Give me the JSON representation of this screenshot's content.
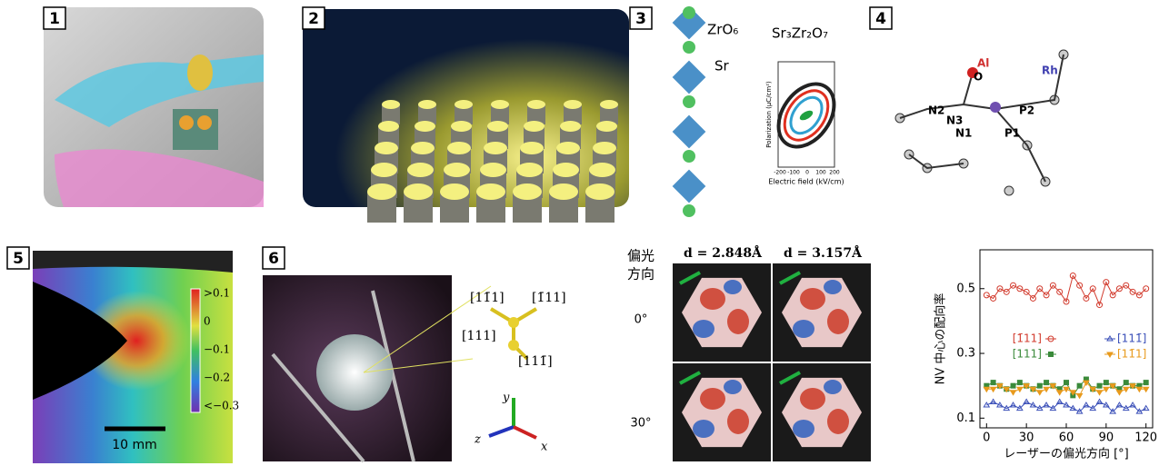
{
  "panel_labels": [
    "1",
    "2",
    "3",
    "4",
    "5",
    "6"
  ],
  "panel3": {
    "octahedron": "ZrO₆",
    "site": "Sr",
    "formula": "Sr₃Zr₂O₇",
    "y_label": "Polarization (μC/cm²)",
    "x_label": "Electric field (kV/cm)",
    "x_ticks": [
      "-200",
      "-100",
      "0",
      "100",
      "200"
    ]
  },
  "panel4": {
    "atoms": [
      "O",
      "Al",
      "Rh",
      "N2",
      "N3",
      "P2",
      "N1",
      "P1"
    ]
  },
  "panel5": {
    "colorbar": [
      ">0.1",
      "0",
      "−0.1",
      "−0.2",
      "<−0.3"
    ],
    "scale_bar": "10 mm"
  },
  "panel6": {
    "directions": [
      "[11̄1]",
      "[1̄11]",
      "[111]",
      "[111̄]"
    ],
    "axes": [
      "y",
      "z",
      "x"
    ]
  },
  "maps": {
    "row_header": [
      "偏光",
      "方向"
    ],
    "columns": [
      "d = 2.848Å",
      "d = 3.157Å"
    ],
    "rows": [
      "0°",
      "30°"
    ]
  },
  "chart_data": {
    "type": "line",
    "x_label": "レーザーの偏光方向 [°]",
    "y_label": "NV 中心の配向率",
    "x": [
      0,
      5,
      10,
      15,
      20,
      25,
      30,
      35,
      40,
      45,
      50,
      55,
      60,
      65,
      70,
      75,
      80,
      85,
      90,
      95,
      100,
      105,
      110,
      115,
      120
    ],
    "xlim": [
      -5,
      125
    ],
    "xticks": [
      0,
      30,
      60,
      90,
      120
    ],
    "ylim": [
      0.07,
      0.62
    ],
    "yticks": [
      0.1,
      0.3,
      0.5
    ],
    "series": [
      {
        "name": "[1̄11]",
        "color": "#d23b2e",
        "marker": "circle",
        "values": [
          0.48,
          0.47,
          0.5,
          0.49,
          0.51,
          0.5,
          0.49,
          0.47,
          0.5,
          0.48,
          0.51,
          0.49,
          0.46,
          0.54,
          0.51,
          0.47,
          0.5,
          0.45,
          0.52,
          0.48,
          0.5,
          0.51,
          0.49,
          0.48,
          0.5
        ]
      },
      {
        "name": "[111̄]",
        "color": "#3a4fb8",
        "marker": "triangle",
        "values": [
          0.14,
          0.15,
          0.14,
          0.13,
          0.14,
          0.13,
          0.15,
          0.14,
          0.13,
          0.14,
          0.13,
          0.15,
          0.14,
          0.13,
          0.12,
          0.14,
          0.13,
          0.15,
          0.14,
          0.12,
          0.14,
          0.13,
          0.14,
          0.12,
          0.13
        ]
      },
      {
        "name": "[111]",
        "color": "#3a8a3a",
        "marker": "square",
        "values": [
          0.2,
          0.21,
          0.2,
          0.19,
          0.2,
          0.21,
          0.2,
          0.19,
          0.2,
          0.21,
          0.2,
          0.19,
          0.21,
          0.17,
          0.2,
          0.22,
          0.19,
          0.2,
          0.21,
          0.2,
          0.19,
          0.21,
          0.2,
          0.2,
          0.21
        ]
      },
      {
        "name": "[11̄1]",
        "color": "#e89a1c",
        "marker": "down",
        "values": [
          0.19,
          0.19,
          0.2,
          0.19,
          0.18,
          0.19,
          0.2,
          0.19,
          0.18,
          0.19,
          0.2,
          0.18,
          0.19,
          0.18,
          0.17,
          0.21,
          0.19,
          0.18,
          0.19,
          0.2,
          0.18,
          0.19,
          0.2,
          0.19,
          0.19
        ]
      }
    ]
  }
}
